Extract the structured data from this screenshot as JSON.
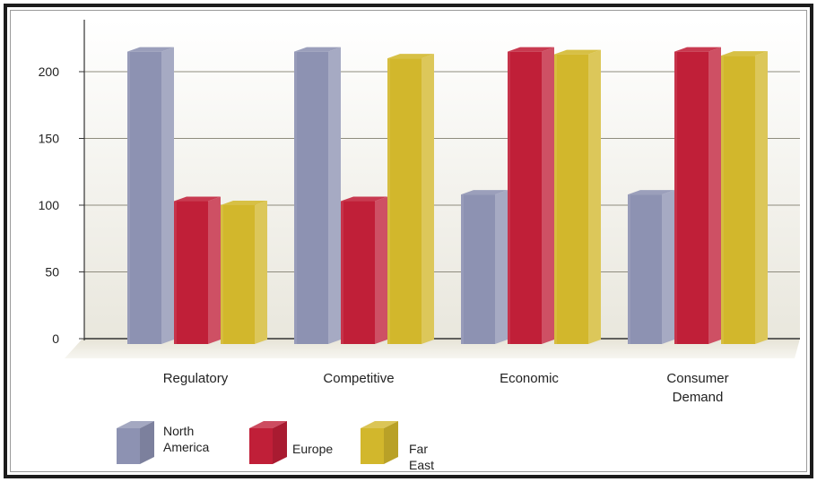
{
  "chart_data": {
    "type": "bar",
    "categories": [
      "Regulatory",
      "Competitive",
      "Economic",
      "Consumer\nDemand"
    ],
    "series": [
      {
        "name": "North\nAmerica",
        "values": [
          215,
          215,
          108,
          108
        ],
        "color": "#8d92b2"
      },
      {
        "name": "Europe",
        "values": [
          103,
          103,
          215,
          215
        ],
        "color": "#c01f38"
      },
      {
        "name": "Far East",
        "values": [
          100,
          210,
          213,
          212
        ],
        "color": "#d2b72c"
      }
    ],
    "yticks": [
      0,
      50,
      100,
      150,
      200
    ],
    "ylim": [
      0,
      220
    ],
    "grid": true,
    "legend_position": "bottom-left"
  }
}
